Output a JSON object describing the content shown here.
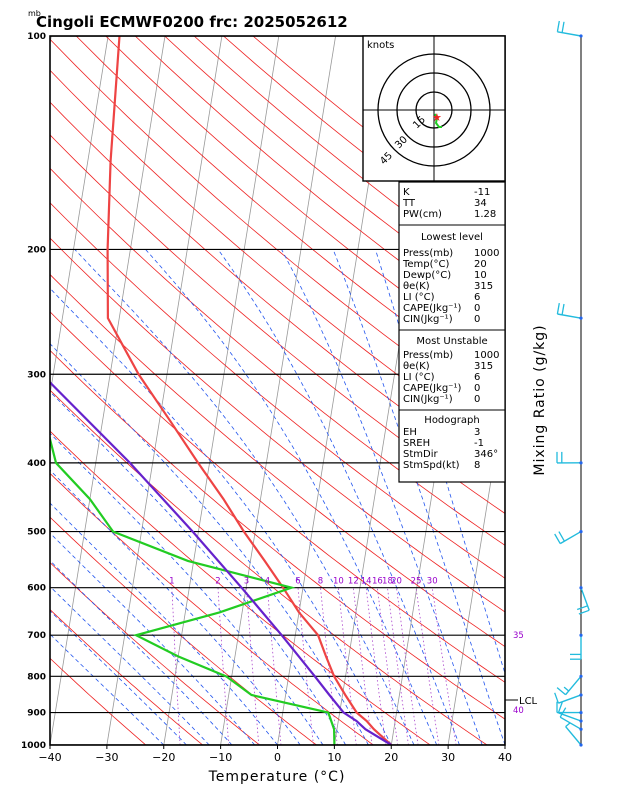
{
  "title": "Cingoli ECMWF0200  frc: 2025052612",
  "pressure_unit": "mb",
  "x_axis_label": "Temperature (°C)",
  "right_axis_label": "Mixing Ratio  (g/kg)",
  "hodograph": {
    "units_label": "knots",
    "ring_labels": [
      "15",
      "30",
      "45"
    ]
  },
  "lcl_label": "LCL",
  "mixing_ratio_labels": [
    "1",
    "2",
    "3",
    "4",
    "6",
    "8",
    "10",
    "12",
    "14",
    "16",
    "18",
    "20",
    "25",
    "30"
  ],
  "theta_labels": [
    "35",
    "40"
  ],
  "index_table": [
    {
      "label": "K",
      "value": "-11"
    },
    {
      "label": "TT",
      "value": "34"
    },
    {
      "label": "PW(cm)",
      "value": "1.28"
    }
  ],
  "lowest_level": {
    "heading": "Lowest level",
    "rows": [
      {
        "label": "Press(mb)",
        "value": "1000"
      },
      {
        "label": "Temp(°C)",
        "value": "20"
      },
      {
        "label": "Dewp(°C)",
        "value": "10"
      },
      {
        "label": "θe(K)",
        "value": "315"
      },
      {
        "label": "LI (°C)",
        "value": "6"
      },
      {
        "label": "CAPE(Jkg⁻¹)",
        "value": "0"
      },
      {
        "label": "CIN(Jkg⁻¹)",
        "value": "0"
      }
    ]
  },
  "most_unstable": {
    "heading": "Most Unstable",
    "rows": [
      {
        "label": "Press(mb)",
        "value": "1000"
      },
      {
        "label": "θe(K)",
        "value": "315"
      },
      {
        "label": "LI (°C)",
        "value": "6"
      },
      {
        "label": "CAPE(Jkg⁻¹)",
        "value": "0"
      },
      {
        "label": "CIN(Jkg⁻¹)",
        "value": "0"
      }
    ]
  },
  "hodograph_table": {
    "heading": "Hodograph",
    "rows": [
      {
        "label": "EH",
        "value": "3"
      },
      {
        "label": "SREH",
        "value": "-1"
      },
      {
        "label": "StmDir",
        "value": "346°"
      },
      {
        "label": "StmSpd(kt)",
        "value": "8"
      }
    ]
  },
  "colors": {
    "temperature": "#ee4444",
    "dewpoint": "#22cc22",
    "parcel": "#6622cc",
    "isotherm": "#999999",
    "dry_adiabat": "#ee2222",
    "moist_adiabat": "#2255ee",
    "mixing_ratio": "#aa44cc",
    "wind": "#22bbdd"
  },
  "chart_data": {
    "type": "line",
    "title": "Cingoli ECMWF0200  frc: 2025052612",
    "xlabel": "Temperature (°C)",
    "ylabel": "mb",
    "log_pressure_axis": true,
    "skewed_isotherms": true,
    "xlim": [
      -40,
      40
    ],
    "ylim": [
      1000,
      100
    ],
    "x_ticks": [
      -40,
      -30,
      -20,
      -10,
      0,
      10,
      20,
      30,
      40
    ],
    "y_ticks": [
      1000,
      900,
      800,
      700,
      600,
      500,
      400,
      300,
      200,
      100
    ],
    "series": [
      {
        "name": "Temperature",
        "points": [
          [
            1000,
            20
          ],
          [
            950,
            16.5
          ],
          [
            925,
            15
          ],
          [
            900,
            13
          ],
          [
            850,
            10.5
          ],
          [
            800,
            8
          ],
          [
            750,
            6
          ],
          [
            700,
            4
          ],
          [
            650,
            0
          ],
          [
            600,
            -3.5
          ],
          [
            550,
            -7.5
          ],
          [
            500,
            -12
          ],
          [
            450,
            -16.5
          ],
          [
            400,
            -22
          ],
          [
            350,
            -28
          ],
          [
            300,
            -35
          ],
          [
            250,
            -42
          ],
          [
            200,
            -44
          ],
          [
            150,
            -46
          ],
          [
            100,
            -48
          ]
        ]
      },
      {
        "name": "Dewpoint",
        "points": [
          [
            1000,
            10
          ],
          [
            950,
            9.5
          ],
          [
            900,
            8
          ],
          [
            850,
            -6
          ],
          [
            800,
            -11
          ],
          [
            750,
            -20
          ],
          [
            700,
            -28
          ],
          [
            650,
            -14
          ],
          [
            600,
            -2
          ],
          [
            550,
            -21
          ],
          [
            500,
            -35
          ],
          [
            450,
            -40
          ],
          [
            400,
            -47
          ],
          [
            350,
            -50
          ],
          [
            300,
            -55
          ],
          [
            250,
            -63
          ],
          [
            200,
            -70
          ],
          [
            150,
            -78
          ],
          [
            100,
            -88
          ]
        ]
      },
      {
        "name": "Parcel",
        "points": [
          [
            1000,
            20
          ],
          [
            950,
            15
          ],
          [
            925,
            13.2
          ],
          [
            900,
            10.7
          ],
          [
            850,
            7.7
          ],
          [
            800,
            4.6
          ],
          [
            700,
            -2.4
          ],
          [
            600,
            -10.8
          ],
          [
            500,
            -21
          ],
          [
            400,
            -34
          ],
          [
            300,
            -52
          ],
          [
            250,
            -62
          ],
          [
            200,
            -72
          ],
          [
            150,
            -86
          ],
          [
            100,
            -100
          ]
        ]
      }
    ],
    "wind_barbs": [
      {
        "p": 1000,
        "dir": 320,
        "spd": 5
      },
      {
        "p": 950,
        "dir": 300,
        "spd": 10
      },
      {
        "p": 925,
        "dir": 290,
        "spd": 10
      },
      {
        "p": 900,
        "dir": 270,
        "spd": 10
      },
      {
        "p": 850,
        "dir": 250,
        "spd": 10
      },
      {
        "p": 800,
        "dir": 220,
        "spd": 15
      },
      {
        "p": 700,
        "dir": 180,
        "spd": 20
      },
      {
        "p": 600,
        "dir": 160,
        "spd": 20
      },
      {
        "p": 500,
        "dir": 240,
        "spd": 20
      },
      {
        "p": 400,
        "dir": 270,
        "spd": 20
      },
      {
        "p": 250,
        "dir": 280,
        "spd": 20
      },
      {
        "p": 100,
        "dir": 280,
        "spd": 20
      }
    ]
  }
}
